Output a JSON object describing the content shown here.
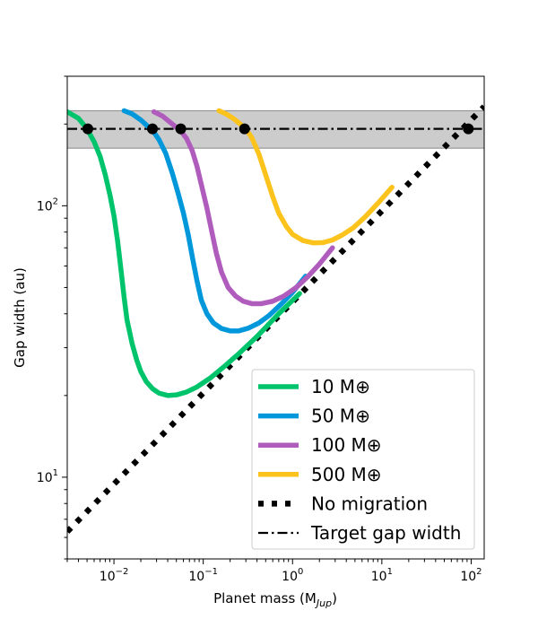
{
  "chart_data": {
    "type": "line",
    "xlabel": "Planet mass (M",
    "xlabel_sub": "Jup",
    "xlabel_end": ")",
    "ylabel": "Gap width  (au)",
    "xscale": "log",
    "yscale": "log",
    "xlim": [
      0.003,
      140
    ],
    "ylim": [
      5,
      300
    ],
    "x_ticks": [
      {
        "value": 0.01,
        "base": "10",
        "exp": "−2"
      },
      {
        "value": 0.1,
        "base": "10",
        "exp": "−1"
      },
      {
        "value": 1,
        "base": "10",
        "exp": "0"
      },
      {
        "value": 10,
        "base": "10",
        "exp": "1"
      },
      {
        "value": 100,
        "base": "10",
        "exp": "2"
      }
    ],
    "y_ticks": [
      {
        "value": 10,
        "base": "10",
        "exp": "1"
      },
      {
        "value": 100,
        "base": "10",
        "exp": "2"
      }
    ],
    "target_band": [
      163,
      224
    ],
    "target_gap_width": 192,
    "series": [
      {
        "name": "10 M⊕",
        "color": "#00c46c",
        "style": "solid",
        "x": [
          0.003,
          0.004,
          0.005,
          0.006,
          0.007,
          0.008,
          0.009,
          0.01,
          0.011,
          0.012,
          0.013,
          0.014,
          0.016,
          0.018,
          0.02,
          0.023,
          0.027,
          0.032,
          0.04,
          0.05,
          0.065,
          0.085,
          0.12,
          0.17,
          0.25,
          0.4,
          0.7,
          1.2
        ],
        "y": [
          222,
          210,
          192,
          172,
          152,
          130,
          110,
          92,
          74,
          58,
          46,
          38,
          31,
          27,
          24.5,
          22.5,
          21.2,
          20.4,
          20.0,
          20.1,
          20.6,
          21.5,
          23.2,
          25.5,
          28.5,
          33,
          40,
          47.5
        ]
      },
      {
        "name": "50 M⊕",
        "color": "#0098db",
        "style": "solid",
        "x": [
          0.013,
          0.016,
          0.02,
          0.024,
          0.027,
          0.032,
          0.038,
          0.045,
          0.052,
          0.06,
          0.068,
          0.076,
          0.085,
          0.095,
          0.11,
          0.13,
          0.16,
          0.2,
          0.25,
          0.32,
          0.42,
          0.55,
          0.75,
          1.0,
          1.4
        ],
        "y": [
          224,
          218,
          207,
          196,
          190,
          175,
          156,
          132,
          112,
          94,
          78,
          64,
          53,
          45,
          40,
          37,
          35.3,
          34.6,
          34.6,
          35.4,
          37,
          39.5,
          43.5,
          48,
          55
        ]
      },
      {
        "name": "100 M⊕",
        "color": "#b05cbd",
        "style": "solid",
        "x": [
          0.028,
          0.035,
          0.045,
          0.055,
          0.065,
          0.075,
          0.085,
          0.095,
          0.11,
          0.125,
          0.14,
          0.16,
          0.19,
          0.23,
          0.28,
          0.35,
          0.45,
          0.6,
          0.8,
          1.1,
          1.5,
          2.0,
          2.8
        ],
        "y": [
          222,
          214,
          200,
          190,
          177,
          160,
          140,
          120,
          98,
          80,
          67,
          57,
          50,
          46.5,
          44.5,
          43.6,
          43.6,
          44.5,
          46.5,
          50,
          55,
          61,
          70
        ]
      },
      {
        "name": "500 M⊕",
        "color": "#fbc31c",
        "style": "solid",
        "x": [
          0.15,
          0.18,
          0.22,
          0.26,
          0.3,
          0.35,
          0.42,
          0.5,
          0.6,
          0.7,
          0.85,
          1.0,
          1.3,
          1.7,
          2.2,
          2.8,
          3.6,
          4.8,
          6.5,
          9.0,
          13
        ],
        "y": [
          224,
          218,
          209,
          200,
          192,
          178,
          155,
          130,
          108,
          94,
          84,
          78.5,
          74.5,
          73,
          73.2,
          74.8,
          78,
          83,
          91,
          102,
          117
        ]
      },
      {
        "name": "No migration",
        "color": "#000000",
        "style": "dotted",
        "x": [
          0.003,
          140
        ],
        "y": [
          6.3,
          232
        ]
      },
      {
        "name": "Target gap width",
        "color": "#000000",
        "style": "dashdot",
        "x": [
          0.003,
          140
        ],
        "y": [
          192,
          192
        ]
      }
    ],
    "markers": {
      "x": [
        0.0051,
        0.027,
        0.056,
        0.29,
        93
      ],
      "y": [
        192,
        192,
        192,
        192,
        192
      ]
    },
    "legend_placement": "lower right",
    "grid": false
  }
}
